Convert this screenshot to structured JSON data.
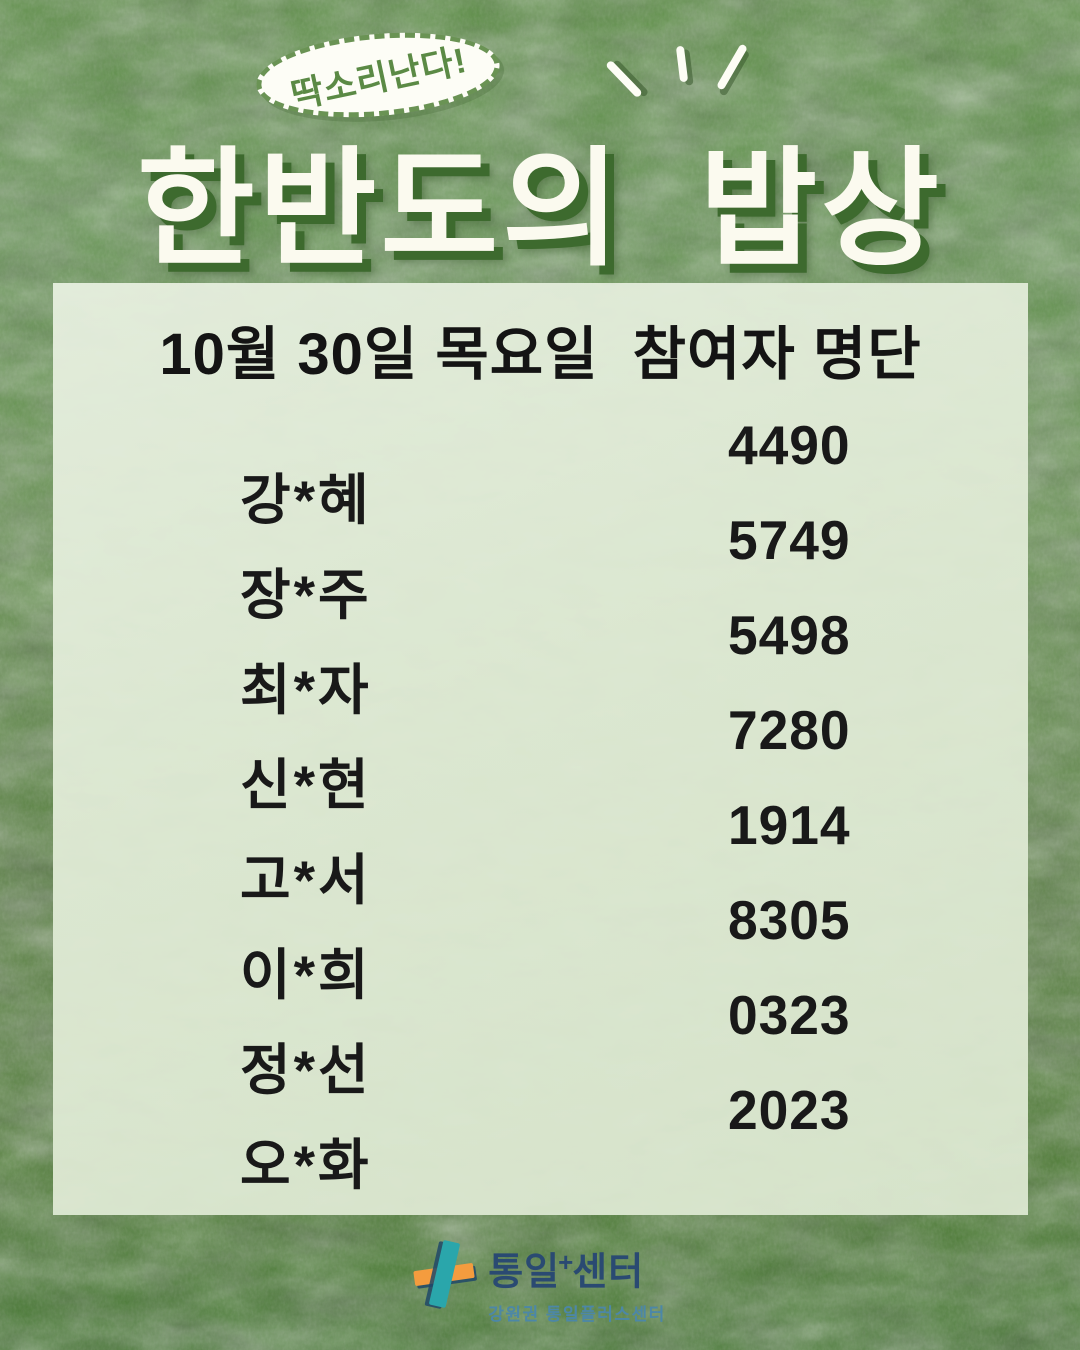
{
  "header": {
    "badge_label": "딱소리난다!",
    "title": "한반도의 밥상"
  },
  "panel": {
    "heading": "10월 30일 목요일  참여자 명단",
    "participants": [
      {
        "name": "강*혜",
        "number": "4490"
      },
      {
        "name": "장*주",
        "number": "5749"
      },
      {
        "name": "최*자",
        "number": "5498"
      },
      {
        "name": "신*현",
        "number": "7280"
      },
      {
        "name": "고*서",
        "number": "1914"
      },
      {
        "name": "이*희",
        "number": "8305"
      },
      {
        "name": "정*선",
        "number": "0323"
      },
      {
        "name": "오*화",
        "number": "2023"
      }
    ]
  },
  "footer": {
    "logo_word_1": "통일",
    "logo_plus": "+",
    "logo_word_2": "센터",
    "logo_subtitle": "강원권 통일플러스센터"
  },
  "colors": {
    "background_green": "#5c8e45",
    "background_green_dark": "#447830",
    "panel_sage": "#dae6cf",
    "title_white": "#fbfaef",
    "title_shadow_green": "#3d6a2e",
    "badge_green": "#5b8a45",
    "list_text_black": "#191919",
    "logo_navy": "#2a4a72",
    "logo_teal": "#2aa6ab",
    "logo_orange": "#f49c3e",
    "logo_subtitle_blue": "#4c87a7"
  }
}
